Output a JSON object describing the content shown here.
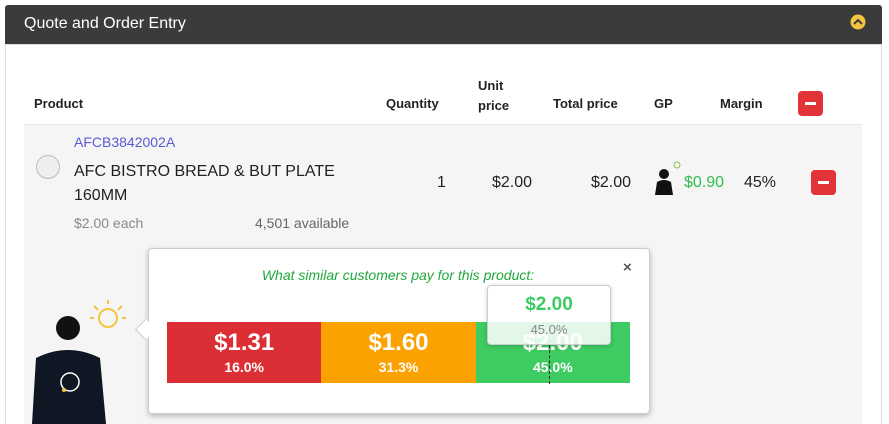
{
  "header": {
    "title": "Quote and Order Entry"
  },
  "table": {
    "columns": {
      "product": "Product",
      "quantity": "Quantity",
      "unit_price": "Unit price",
      "total_price": "Total price",
      "gp": "GP",
      "margin": "Margin"
    },
    "rows": [
      {
        "sku": "AFCB3842002A",
        "name": "AFC BISTRO BREAD & BUT PLATE 160MM",
        "each": "$2.00 each",
        "available": "4,501 available",
        "quantity": "1",
        "unit_price": "$2.00",
        "total_price": "$2.00",
        "gp": "$0.90",
        "margin": "45%"
      }
    ]
  },
  "popup": {
    "title": "What similar customers pay for this product:",
    "segments": [
      {
        "price": "$1.31",
        "percent": "16.0%",
        "color": "#dc2f35"
      },
      {
        "price": "$1.60",
        "percent": "31.3%",
        "color": "#fba100"
      },
      {
        "price": "$2.00",
        "percent": "45.0%",
        "color": "#3dcb62"
      }
    ],
    "marker": {
      "price": "$2.00",
      "percent": "45.0%"
    }
  }
}
